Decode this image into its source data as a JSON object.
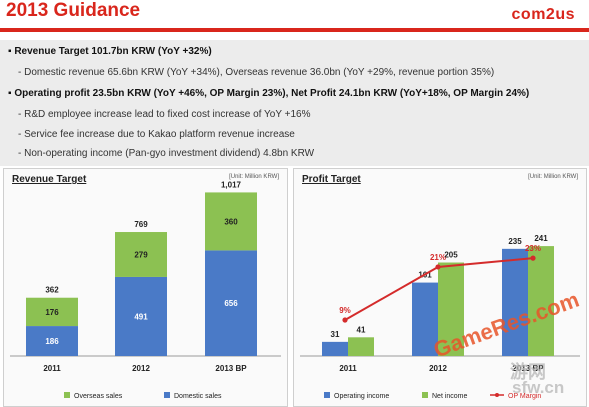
{
  "header": {
    "title": "2013 Guidance",
    "logo": "com2us"
  },
  "guidance": [
    {
      "level": "main",
      "text": "▪ Revenue Target 101.7bn KRW (YoY +32%)"
    },
    {
      "level": "sub",
      "text": "- Domestic revenue 65.6bn KRW (YoY +34%), Overseas revenue 36.0bn (YoY +29%, revenue portion 35%)"
    },
    {
      "level": "main",
      "text": "▪ Operating profit 23.5bn KRW (YoY +46%, OP Margin 23%), Net Profit 24.1bn KRW (YoY+18%, OP Margin 24%)"
    },
    {
      "level": "sub",
      "text": "- R&D employee increase lead to fixed cost increase of YoY +16%"
    },
    {
      "level": "sub",
      "text": "- Service fee increase due to Kakao platform revenue increase"
    },
    {
      "level": "sub",
      "text": "- Non-operating income (Pan-gyo investment dividend) 4.8bn KRW"
    }
  ],
  "watermark": {
    "brand": "GameRes.com",
    "site": "sfw.cn",
    "cn": "游网"
  },
  "colors": {
    "accent": "#d9261c",
    "blue": "#4a7ac7",
    "green": "#8cc152",
    "line": "#d42b2b"
  },
  "chart_data": [
    {
      "type": "bar",
      "title": "Revenue Target",
      "unit": "[Unit: Million KRW]",
      "categories": [
        "2011",
        "2012",
        "2013 BP"
      ],
      "series": [
        {
          "name": "Domestic sales",
          "values": [
            186,
            491,
            656
          ]
        },
        {
          "name": "Overseas sales",
          "values": [
            176,
            279,
            360
          ]
        }
      ],
      "totals": [
        "362",
        "769",
        "1,017"
      ],
      "stacked": true
    },
    {
      "type": "bar",
      "title": "Profit Target",
      "unit": "[Unit: Million KRW]",
      "categories": [
        "2011",
        "2012",
        "2013 BP"
      ],
      "series": [
        {
          "name": "Operating income",
          "values": [
            31,
            161,
            235
          ]
        },
        {
          "name": "Net income",
          "values": [
            41,
            205,
            241
          ]
        },
        {
          "name": "OP Margin",
          "type": "line",
          "values": [
            9,
            21,
            23
          ],
          "labels": [
            "9%",
            "21%",
            "23%"
          ]
        }
      ]
    }
  ]
}
